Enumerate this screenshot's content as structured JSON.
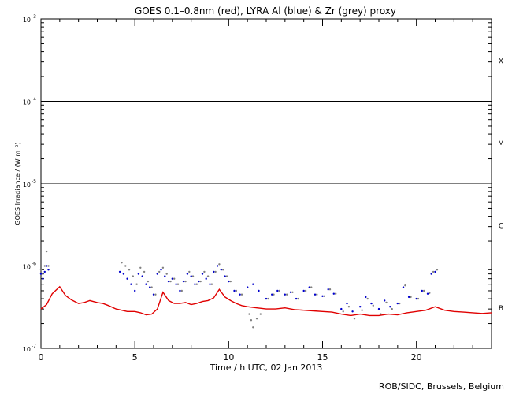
{
  "chart_data": {
    "type": "line",
    "title": "GOES 0.1–0.8nm (red), LYRA Al (blue) & Zr (grey) proxy",
    "xlabel": "Time / h UTC, 02 Jan 2013",
    "ylabel": "GOES Irradiance / (W m⁻²)",
    "credit": "ROB/SIDC, Brussels, Belgium",
    "xlim": [
      0,
      24
    ],
    "ylim_log10": [
      -7,
      -3
    ],
    "y_scale": "log",
    "x_ticks": [
      {
        "value": 0,
        "label": "0"
      },
      {
        "value": 5,
        "label": "5"
      },
      {
        "value": 10,
        "label": "10"
      },
      {
        "value": 15,
        "label": "15"
      },
      {
        "value": 20,
        "label": "20"
      }
    ],
    "y_ticks": [
      {
        "exp": -7,
        "label": "10",
        "sup": "-7"
      },
      {
        "exp": -6,
        "label": "10",
        "sup": "-6"
      },
      {
        "exp": -5,
        "label": "10",
        "sup": "-5"
      },
      {
        "exp": -4,
        "label": "10",
        "sup": "-4"
      },
      {
        "exp": -3,
        "label": "10",
        "sup": "-3"
      }
    ],
    "class_lines_log10": [
      -6,
      -5,
      -4
    ],
    "flare_classes": [
      {
        "label": "B",
        "exp": -6.5
      },
      {
        "label": "C",
        "exp": -5.5
      },
      {
        "label": "M",
        "exp": -4.5
      },
      {
        "label": "X",
        "exp": -3.5
      }
    ],
    "colors": {
      "goes": "#e00000",
      "lyra_al": "#0000cc",
      "lyra_zr": "#808080"
    },
    "series": [
      {
        "name": "GOES 0.1–0.8nm",
        "color": "red",
        "style": "line",
        "x": [
          0.0,
          0.3,
          0.6,
          1.0,
          1.3,
          1.6,
          2.0,
          2.3,
          2.6,
          3.0,
          3.3,
          3.6,
          4.0,
          4.3,
          4.6,
          5.0,
          5.3,
          5.6,
          5.9,
          6.2,
          6.5,
          6.8,
          7.1,
          7.4,
          7.7,
          8.0,
          8.3,
          8.6,
          8.9,
          9.2,
          9.5,
          9.8,
          10.1,
          10.4,
          10.7,
          11.0,
          11.5,
          12.0,
          12.5,
          13.0,
          13.5,
          14.0,
          14.5,
          15.0,
          15.5,
          16.0,
          16.5,
          17.0,
          17.5,
          18.0,
          18.5,
          19.0,
          19.5,
          20.0,
          20.5,
          21.0,
          21.5,
          22.0,
          22.5,
          23.0,
          23.5,
          24.0
        ],
        "y": [
          3e-07,
          3.4e-07,
          4.6e-07,
          5.6e-07,
          4.4e-07,
          3.9e-07,
          3.5e-07,
          3.6e-07,
          3.8e-07,
          3.6e-07,
          3.5e-07,
          3.3e-07,
          3e-07,
          2.9e-07,
          2.8e-07,
          2.8e-07,
          2.7e-07,
          2.55e-07,
          2.6e-07,
          3e-07,
          4.8e-07,
          3.8e-07,
          3.5e-07,
          3.5e-07,
          3.6e-07,
          3.4e-07,
          3.5e-07,
          3.7e-07,
          3.8e-07,
          4.1e-07,
          5.2e-07,
          4.2e-07,
          3.8e-07,
          3.5e-07,
          3.3e-07,
          3.2e-07,
          3.1e-07,
          3e-07,
          3e-07,
          3.1e-07,
          2.95e-07,
          2.9e-07,
          2.85e-07,
          2.8e-07,
          2.75e-07,
          2.6e-07,
          2.5e-07,
          2.6e-07,
          2.5e-07,
          2.5e-07,
          2.6e-07,
          2.55e-07,
          2.7e-07,
          2.8e-07,
          2.9e-07,
          3.2e-07,
          2.9e-07,
          2.8e-07,
          2.75e-07,
          2.7e-07,
          2.65e-07,
          2.7e-07
        ]
      },
      {
        "name": "LYRA Al proxy",
        "color": "blue",
        "style": "dots",
        "x": [
          0.0,
          0.1,
          0.2,
          0.3,
          0.4,
          4.2,
          4.4,
          4.6,
          4.8,
          5.0,
          5.2,
          5.4,
          5.6,
          5.8,
          6.0,
          6.2,
          6.4,
          6.6,
          6.8,
          7.0,
          7.2,
          7.4,
          7.6,
          7.8,
          8.0,
          8.2,
          8.4,
          8.6,
          8.8,
          9.0,
          9.2,
          9.4,
          9.6,
          9.8,
          10.0,
          10.3,
          10.6,
          11.0,
          11.3,
          11.6,
          12.0,
          12.3,
          12.6,
          13.0,
          13.3,
          13.6,
          14.0,
          14.3,
          14.6,
          15.0,
          15.3,
          15.6,
          16.0,
          16.3,
          16.6,
          17.0,
          17.3,
          17.6,
          18.0,
          18.3,
          18.6,
          19.0,
          19.3,
          19.6,
          20.0,
          20.3,
          20.6,
          20.8,
          21.0
        ],
        "y": [
          8e-07,
          7e-07,
          8.5e-07,
          1e-06,
          9e-07,
          8.5e-07,
          8e-07,
          7e-07,
          6e-07,
          5e-07,
          8e-07,
          7.5e-07,
          6e-07,
          5.5e-07,
          4.5e-07,
          8e-07,
          9e-07,
          7.5e-07,
          6.5e-07,
          7e-07,
          6e-07,
          5e-07,
          6.5e-07,
          8e-07,
          7.5e-07,
          6e-07,
          6.5e-07,
          8e-07,
          7e-07,
          6e-07,
          8.5e-07,
          1e-06,
          9e-07,
          7.5e-07,
          6.5e-07,
          5e-07,
          4.5e-07,
          5.5e-07,
          6e-07,
          5e-07,
          4e-07,
          4.5e-07,
          5e-07,
          4.5e-07,
          4.8e-07,
          4e-07,
          5e-07,
          5.5e-07,
          4.5e-07,
          4.3e-07,
          5.2e-07,
          4.6e-07,
          3e-07,
          3.5e-07,
          2.8e-07,
          3.2e-07,
          4.2e-07,
          3.5e-07,
          3e-07,
          3.8e-07,
          3.2e-07,
          3.5e-07,
          5.5e-07,
          4.2e-07,
          4e-07,
          5e-07,
          4.6e-07,
          8e-07,
          8.5e-07
        ]
      },
      {
        "name": "LYRA Zr proxy",
        "color": "grey",
        "style": "dots",
        "x": [
          0.0,
          0.1,
          0.2,
          0.3,
          0.4,
          4.3,
          4.5,
          4.7,
          4.9,
          5.1,
          5.3,
          5.5,
          5.7,
          5.9,
          6.1,
          6.3,
          6.5,
          6.7,
          6.9,
          7.1,
          7.3,
          7.5,
          7.7,
          7.9,
          8.1,
          8.3,
          8.5,
          8.7,
          8.9,
          9.1,
          9.3,
          9.5,
          9.7,
          9.9,
          10.1,
          10.4,
          10.7,
          11.1,
          11.2,
          11.3,
          11.5,
          11.7,
          12.1,
          12.4,
          12.7,
          13.1,
          13.4,
          13.7,
          14.1,
          14.4,
          14.7,
          15.1,
          15.4,
          15.7,
          16.1,
          16.4,
          16.7,
          17.1,
          17.4,
          17.7,
          18.1,
          18.4,
          18.7,
          19.1,
          19.4,
          19.7,
          20.1,
          20.4,
          20.7,
          20.9,
          21.1
        ],
        "y": [
          9e-07,
          8e-07,
          1e-06,
          1.5e-06,
          1e-06,
          1.1e-06,
          1e-06,
          9e-07,
          7.5e-07,
          6e-07,
          9.5e-07,
          8.5e-07,
          6.5e-07,
          5.5e-07,
          4.5e-07,
          8.5e-07,
          9.5e-07,
          8e-07,
          6.5e-07,
          7e-07,
          6e-07,
          5e-07,
          6.5e-07,
          8.5e-07,
          7.5e-07,
          6e-07,
          6.5e-07,
          8.5e-07,
          7.5e-07,
          6e-07,
          8.5e-07,
          1.05e-06,
          9e-07,
          7.5e-07,
          6.5e-07,
          5e-07,
          4.5e-07,
          2.6e-07,
          2.2e-07,
          1.8e-07,
          2.3e-07,
          2.6e-07,
          4e-07,
          4.5e-07,
          5e-07,
          4.5e-07,
          4.8e-07,
          4e-07,
          5e-07,
          5.5e-07,
          4.5e-07,
          4.3e-07,
          5.2e-07,
          4.6e-07,
          2.8e-07,
          3.2e-07,
          2.3e-07,
          2.9e-07,
          4e-07,
          3.3e-07,
          2.6e-07,
          3.6e-07,
          3e-07,
          3.5e-07,
          5.8e-07,
          4.2e-07,
          4e-07,
          5e-07,
          4.7e-07,
          8.5e-07,
          9e-07
        ]
      }
    ]
  }
}
